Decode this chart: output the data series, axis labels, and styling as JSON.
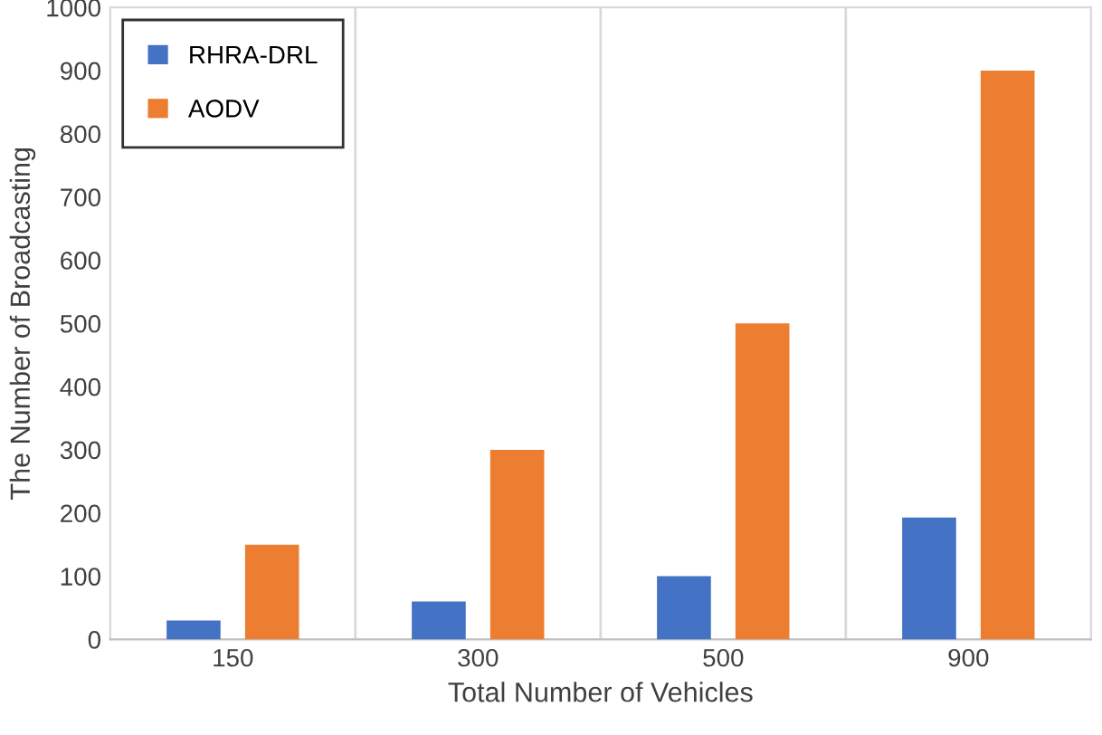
{
  "chart_data": {
    "type": "bar",
    "xlabel": "Total Number of Vehicles",
    "ylabel": "The Number of Broadcasting",
    "categories": [
      "150",
      "300",
      "500",
      "900"
    ],
    "series": [
      {
        "name": "RHRA-DRL",
        "color": "#4472c4",
        "values": [
          30,
          60,
          100,
          193
        ]
      },
      {
        "name": "AODV",
        "color": "#ed7d31",
        "values": [
          150,
          300,
          500,
          900
        ]
      }
    ],
    "ylim": [
      0,
      1000
    ],
    "yticks": [
      0,
      100,
      200,
      300,
      400,
      500,
      600,
      700,
      800,
      900,
      1000
    ],
    "grid": "x",
    "legend": "top left"
  }
}
